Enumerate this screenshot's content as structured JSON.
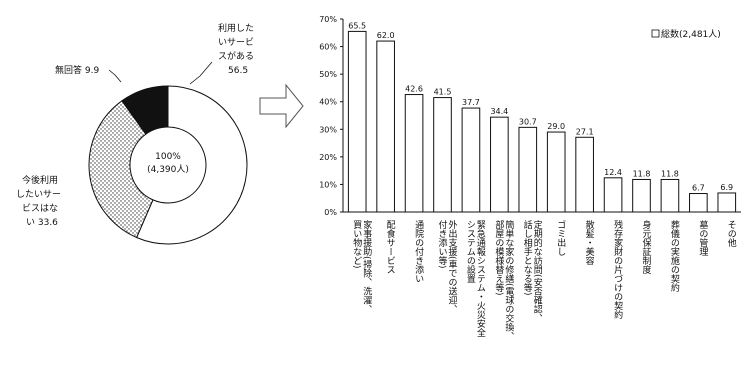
{
  "chart_data": [
    {
      "type": "pie",
      "variant": "donut",
      "center_label": [
        "100%",
        "(4,390人)"
      ],
      "slices": [
        {
          "label_lines": [
            "利用した",
            "いサービ",
            "スがある"
          ],
          "value": 56.5,
          "value_text": "56.5",
          "fill": "white"
        },
        {
          "label_lines": [
            "今後利用",
            "したいサー",
            "ビスはな",
            "い 33.6"
          ],
          "value": 33.6,
          "fill": "dotted"
        },
        {
          "label_lines": [
            "無回答 9.9"
          ],
          "value": 9.9,
          "fill": "black"
        }
      ]
    },
    {
      "type": "bar",
      "legend": {
        "label": "総数(2,481人)",
        "position": "top-right"
      },
      "ylim": [
        0,
        70
      ],
      "yticks": [
        "0%",
        "10%",
        "20%",
        "30%",
        "40%",
        "50%",
        "60%",
        "70%"
      ],
      "categories": [
        {
          "lines": [
            "家事援助(掃除、洗濯、",
            "買い物など)"
          ],
          "value": 65.5
        },
        {
          "lines": [
            "配食サービス"
          ],
          "value": 62.0
        },
        {
          "lines": [
            "通院の付き添い"
          ],
          "value": 42.6
        },
        {
          "lines": [
            "外出支援(車での送迎、",
            "付き添い等)"
          ],
          "value": 41.5
        },
        {
          "lines": [
            "緊急通報システム・火災安全",
            "システムの設置"
          ],
          "value": 37.7
        },
        {
          "lines": [
            "簡単な家の修繕(電球の交換、",
            "部屋の模様替え等)"
          ],
          "value": 34.4
        },
        {
          "lines": [
            "定期的な訪問(安否確認、",
            "話し相手となる等)"
          ],
          "value": 30.7
        },
        {
          "lines": [
            "ゴミ出し"
          ],
          "value": 29.0
        },
        {
          "lines": [
            "散髪・美容"
          ],
          "value": 27.1
        },
        {
          "lines": [
            "残存家財の片づけの契約"
          ],
          "value": 12.4
        },
        {
          "lines": [
            "身元保証制度"
          ],
          "value": 11.8
        },
        {
          "lines": [
            "葬儀の実施の契約"
          ],
          "value": 11.8
        },
        {
          "lines": [
            "墓の管理"
          ],
          "value": 6.7
        },
        {
          "lines": [
            "その他"
          ],
          "value": 6.9
        }
      ]
    }
  ]
}
